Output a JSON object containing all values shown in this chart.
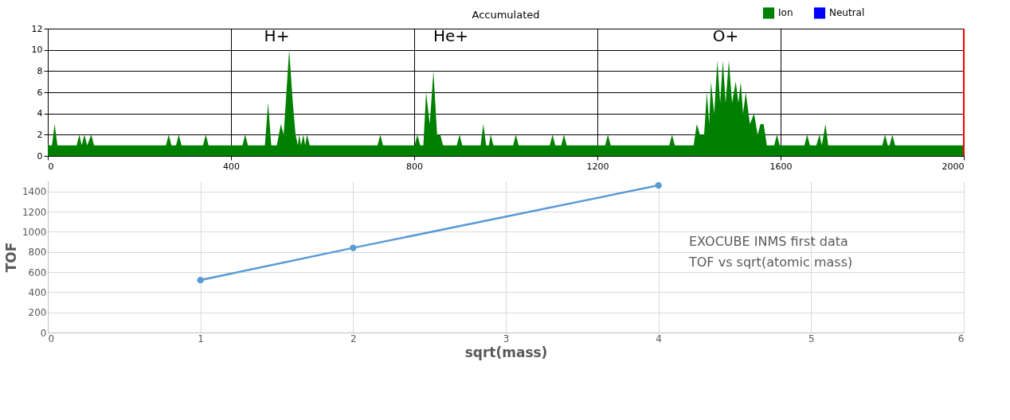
{
  "chart_data": [
    {
      "type": "area",
      "title": "Accumulated",
      "xlim": [
        0,
        2000
      ],
      "xticks": [
        0,
        400,
        800,
        1200,
        1600,
        2000
      ],
      "ylim": [
        0,
        12
      ],
      "yticks": [
        0,
        2,
        4,
        6,
        8,
        10,
        12
      ],
      "grid": true,
      "legend": "top right",
      "x": [
        0,
        9,
        15,
        21,
        63,
        69,
        74,
        80,
        86,
        95,
        101,
        258,
        264,
        270,
        280,
        286,
        292,
        339,
        345,
        351,
        425,
        431,
        437,
        474,
        481,
        488,
        500,
        509,
        515,
        527,
        535,
        541,
        546,
        549,
        553,
        558,
        562,
        566,
        572,
        720,
        726,
        732,
        801,
        807,
        813,
        820,
        826,
        834,
        842,
        850,
        857,
        863,
        893,
        899,
        905,
        945,
        951,
        957,
        963,
        967,
        973,
        1016,
        1022,
        1028,
        1096,
        1102,
        1108,
        1121,
        1127,
        1133,
        1217,
        1223,
        1229,
        1357,
        1363,
        1369,
        1410,
        1417,
        1424,
        1433,
        1439,
        1444,
        1448,
        1455,
        1462,
        1468,
        1474,
        1480,
        1487,
        1494,
        1502,
        1508,
        1513,
        1518,
        1524,
        1533,
        1542,
        1550,
        1556,
        1563,
        1570,
        1586,
        1592,
        1598,
        1652,
        1658,
        1664,
        1678,
        1685,
        1690,
        1698,
        1704,
        1822,
        1828,
        1834,
        1838,
        1844,
        1850,
        2000
      ],
      "series": [
        {
          "name": "Ion",
          "color": "#008000",
          "values": [
            1,
            1,
            3,
            1,
            1,
            2,
            1,
            2,
            1,
            2,
            1,
            1,
            2,
            1,
            1,
            2,
            1,
            1,
            2,
            1,
            1,
            2,
            1,
            1,
            5,
            1,
            1,
            3,
            2,
            10,
            5,
            2,
            1,
            2,
            1,
            2,
            1,
            2,
            1,
            1,
            2,
            1,
            1,
            2,
            1,
            1,
            6,
            3,
            8,
            2,
            2,
            1,
            1,
            2,
            1,
            1,
            3,
            1,
            1,
            2,
            1,
            1,
            2,
            1,
            1,
            2,
            1,
            1,
            2,
            1,
            1,
            2,
            1,
            1,
            2,
            1,
            1,
            3,
            2,
            2,
            6,
            3,
            7,
            4,
            9,
            5,
            9,
            5,
            9,
            5,
            7,
            5,
            7,
            4,
            6,
            3,
            4,
            2,
            3,
            3,
            1,
            1,
            2,
            1,
            1,
            2,
            1,
            1,
            2,
            1,
            3,
            1,
            1,
            2,
            1,
            1,
            2,
            1,
            1
          ]
        },
        {
          "name": "Neutral",
          "color": "#0000ff",
          "values": [
            null,
            null,
            null,
            null,
            null,
            null,
            null,
            null,
            null,
            null,
            null,
            null,
            null,
            null,
            null,
            null,
            null,
            null,
            null,
            null,
            null,
            null,
            null,
            null,
            null,
            null,
            null,
            null,
            null,
            null,
            null,
            null,
            null,
            null,
            null,
            null,
            null,
            null,
            null,
            null,
            null,
            null,
            null,
            null,
            null,
            null,
            null,
            null,
            null,
            null,
            null,
            null,
            null,
            null,
            null,
            null,
            null,
            null,
            null,
            null,
            null,
            null,
            null,
            null,
            null,
            null,
            null,
            null,
            null,
            null,
            null,
            null,
            null,
            null,
            null,
            null,
            null,
            null,
            null,
            null,
            null,
            null,
            null,
            null,
            null,
            null,
            null,
            null,
            null,
            null,
            null,
            null,
            null,
            null,
            null,
            null,
            null,
            null,
            null,
            null,
            null,
            null,
            null,
            null,
            null,
            null,
            null,
            null,
            null,
            null,
            null,
            null,
            null,
            null,
            null,
            null,
            null,
            null,
            null
          ]
        }
      ],
      "ref_lines": [
        {
          "axis": "x",
          "value": 2000,
          "color": "#ff0000"
        }
      ],
      "annotations": [
        "H+",
        "He+",
        "O+"
      ]
    },
    {
      "type": "line",
      "x": [
        1,
        2,
        4
      ],
      "xlim": [
        0,
        6
      ],
      "xticks": [
        0,
        1,
        2,
        3,
        4,
        5,
        6
      ],
      "ylim": [
        0,
        1500
      ],
      "yticks": [
        0,
        200,
        400,
        600,
        800,
        1000,
        1200,
        1400
      ],
      "grid": true,
      "marker": "circle",
      "xlabel": "sqrt(mass)",
      "ylabel": "TOF",
      "series": [
        {
          "color": "#5b9bd5",
          "values": [
            520,
            840,
            1460
          ]
        }
      ],
      "annotations": [
        "EXOCUBE INMS first data",
        "TOF vs sqrt(atomic mass)"
      ]
    }
  ]
}
